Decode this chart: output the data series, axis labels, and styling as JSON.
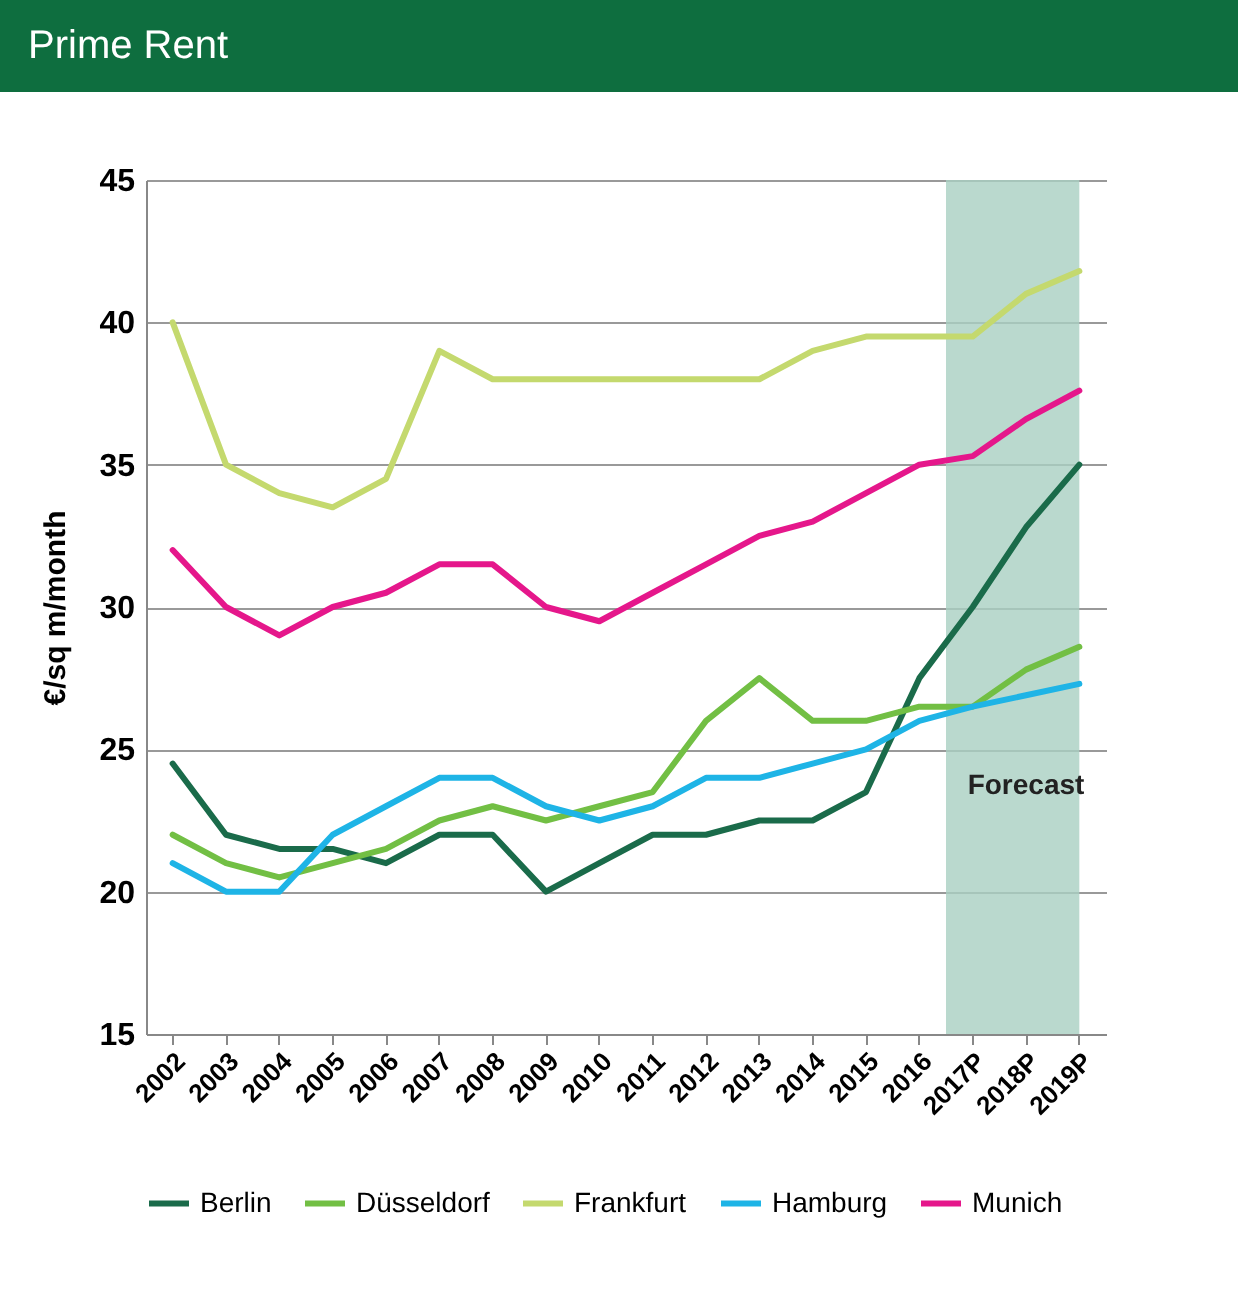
{
  "chart_data": {
    "type": "line",
    "title": "Prime Rent",
    "ylabel": "€/sq m/month",
    "categories": [
      "2002",
      "2003",
      "2004",
      "2005",
      "2006",
      "2007",
      "2008",
      "2009",
      "2010",
      "2011",
      "2012",
      "2013",
      "2014",
      "2015",
      "2016",
      "2017P",
      "2018P",
      "2019P"
    ],
    "series": [
      {
        "name": "Berlin",
        "color": "#1a6b4a",
        "values": [
          24.5,
          22,
          21.5,
          21.5,
          21,
          22,
          22,
          20,
          21,
          22,
          22,
          22.5,
          22.5,
          23.5,
          27.5,
          30,
          32.8,
          35
        ]
      },
      {
        "name": "Düsseldorf",
        "color": "#72bf44",
        "values": [
          22,
          21,
          20.5,
          21,
          21.5,
          22.5,
          23,
          22.5,
          23,
          23.5,
          26,
          27.5,
          26,
          26,
          26.5,
          26.5,
          27.8,
          28.6
        ]
      },
      {
        "name": "Frankfurt",
        "color": "#c4d96e",
        "values": [
          40,
          35,
          34,
          33.5,
          34.5,
          39,
          38,
          38,
          38,
          38,
          38,
          38,
          39,
          39.5,
          39.5,
          39.5,
          41,
          41.8
        ]
      },
      {
        "name": "Hamburg",
        "color": "#1eb4e6",
        "values": [
          21,
          20,
          20,
          22,
          23,
          24,
          24,
          23,
          22.5,
          23,
          24,
          24,
          24.5,
          25,
          26,
          26.5,
          26.9,
          27.3
        ]
      },
      {
        "name": "Munich",
        "color": "#e5178b",
        "values": [
          32,
          30,
          29,
          30,
          30.5,
          31.5,
          31.5,
          30,
          29.5,
          30.5,
          31.5,
          32.5,
          33,
          34,
          35,
          35.3,
          36.6,
          37.6
        ]
      }
    ],
    "ylim": [
      15,
      45
    ],
    "yticks": [
      15,
      20,
      25,
      30,
      35,
      40,
      45
    ],
    "grid": "y",
    "legend": "bottom",
    "marker": "none",
    "line_style": "solid",
    "bands": [
      {
        "axis": "x",
        "from": "2017P",
        "to": "2019P",
        "label": "Forecast",
        "color": "#a9cfc2"
      }
    ]
  }
}
